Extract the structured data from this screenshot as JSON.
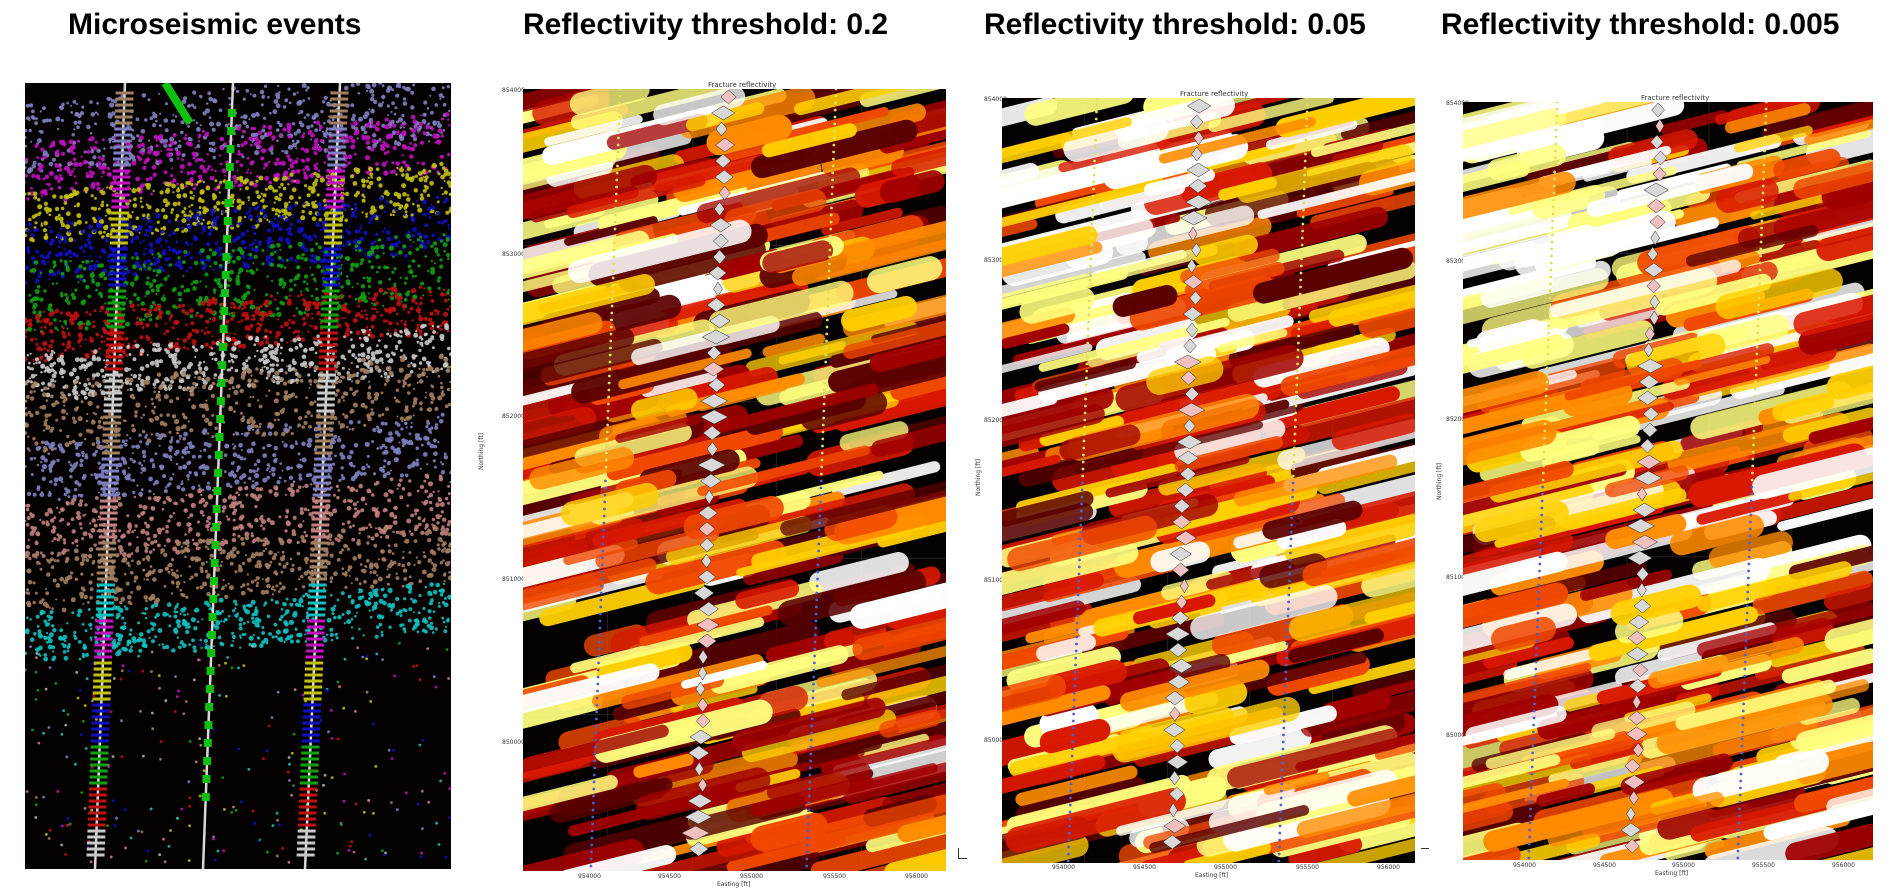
{
  "panels": [
    {
      "title": "Microseismic events"
    },
    {
      "title": "Reflectivity threshold: 0.2",
      "plot_title": "Fracture reflectivity",
      "ylabel": "Northing [ft]",
      "xlabel": "Easting [ft]",
      "yticks": [
        "854000",
        "853000",
        "852000",
        "851000",
        "850000"
      ],
      "xticks": [
        "954000",
        "954500",
        "955000",
        "955500",
        "956000"
      ]
    },
    {
      "title": "Reflectivity threshold: 0.05",
      "plot_title": "Fracture reflectivity",
      "ylabel": "Northing [ft]",
      "xlabel": "Easting [ft]",
      "yticks": [
        "854000",
        "853000",
        "852000",
        "851000",
        "850000"
      ],
      "xticks": [
        "954000",
        "954500",
        "955000",
        "955500",
        "956000"
      ]
    },
    {
      "title": "Reflectivity threshold: 0.005",
      "plot_title": "Fracture reflectivity",
      "ylabel": "Northing [ft]",
      "xlabel": "Easting [ft]",
      "yticks": [
        "854000",
        "853000",
        "852000",
        "851000",
        "850000"
      ],
      "xticks": [
        "954000",
        "954500",
        "955000",
        "955500",
        "956000"
      ]
    }
  ],
  "colors": {
    "background": "#050000",
    "reflectivity_scale": [
      "#5a0000",
      "#a00000",
      "#d81800",
      "#f04800",
      "#ff8c00",
      "#ffd000",
      "#ffff80",
      "#ffffff"
    ],
    "stage_colors": [
      "#b0b0b0",
      "#c01010",
      "#10a010",
      "#1010c0",
      "#c0c010",
      "#c010c0",
      "#10c0c0",
      "#8080c0",
      "#c08080",
      "#a08060"
    ]
  }
}
